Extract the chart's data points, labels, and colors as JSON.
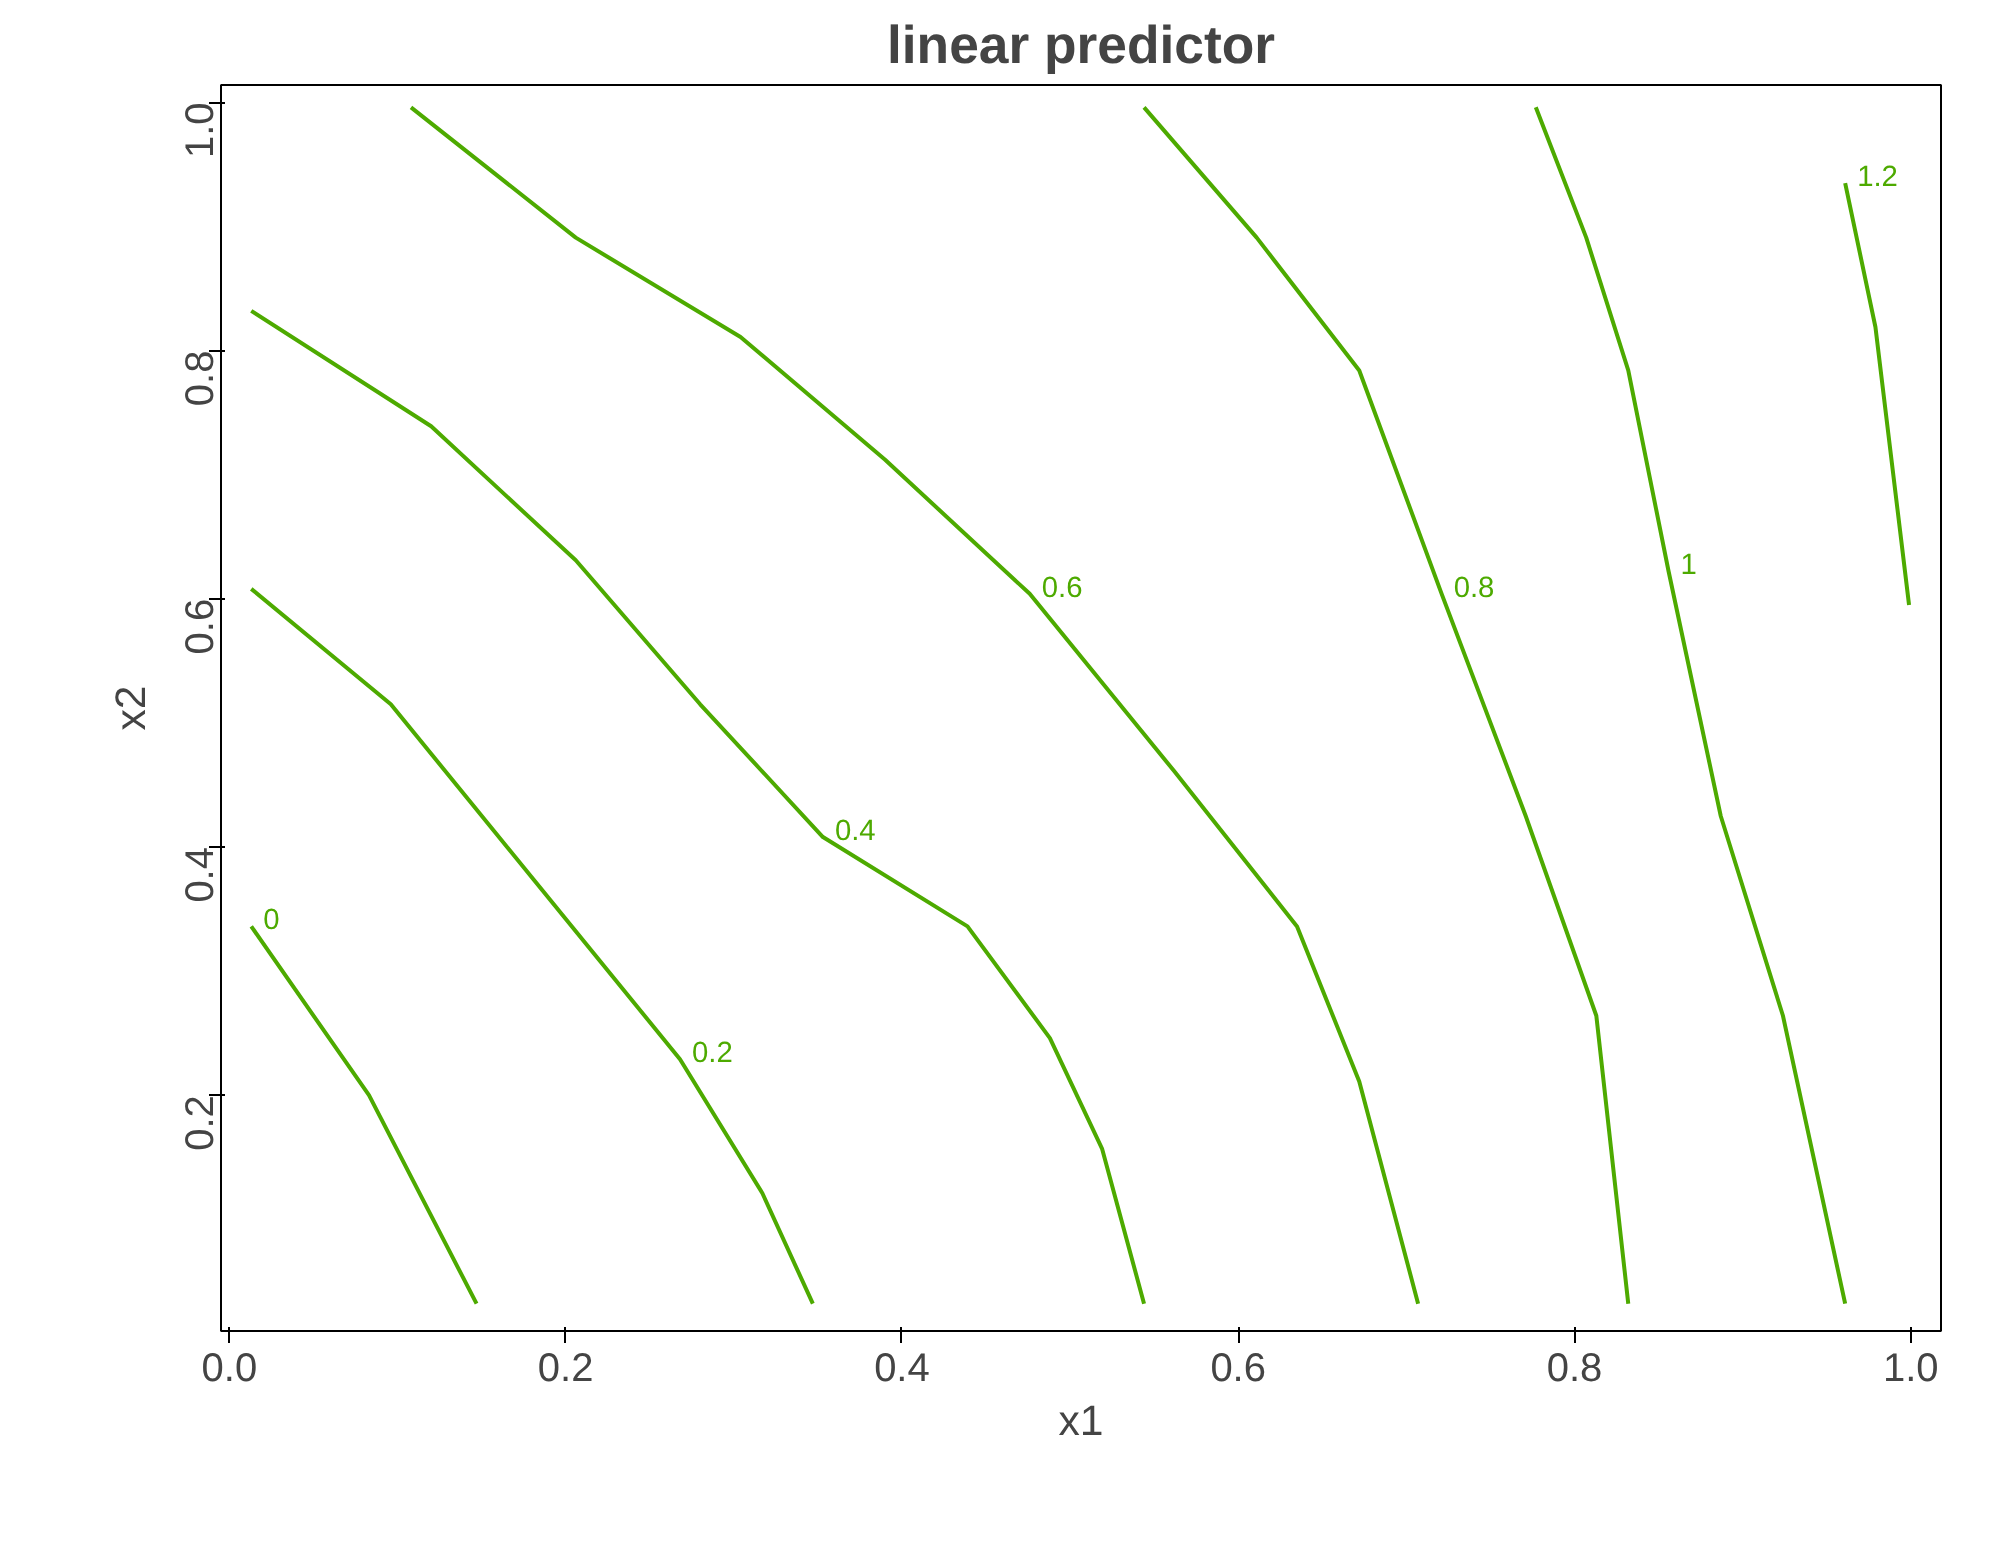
{
  "chart_data": {
    "type": "line",
    "title": "linear predictor",
    "xlabel": "x1",
    "ylabel": "x2",
    "xlim": [
      -0.005,
      1.018
    ],
    "ylim": [
      0.01,
      1.014
    ],
    "xticks": [
      {
        "value": 0,
        "label": "0.0"
      },
      0.2,
      0.4,
      0.6,
      0.8,
      {
        "value": 1,
        "label": "1.0"
      }
    ],
    "yticks": [
      0.2,
      0.4,
      0.6,
      0.8,
      {
        "value": 1,
        "label": "1.0"
      }
    ],
    "grid": false,
    "legend": false,
    "marker": "none",
    "line_style": "solid",
    "series": [
      {
        "name": "0",
        "color": "#4daa00",
        "x": [
          0.013,
          0.083,
          0.147
        ],
        "values": [
          0.336,
          0.2,
          0.032
        ]
      },
      {
        "name": "0.2",
        "color": "#4daa00",
        "x": [
          0.013,
          0.096,
          0.182,
          0.268,
          0.317,
          0.347
        ],
        "values": [
          0.608,
          0.515,
          0.372,
          0.229,
          0.121,
          0.032
        ]
      },
      {
        "name": "0.4",
        "color": "#4daa00",
        "x": [
          0.013,
          0.12,
          0.206,
          0.28,
          0.353,
          0.439,
          0.488,
          0.519,
          0.544
        ],
        "values": [
          0.832,
          0.739,
          0.631,
          0.515,
          0.408,
          0.336,
          0.246,
          0.157,
          0.032
        ]
      },
      {
        "name": "0.6",
        "color": "#4daa00",
        "x": [
          0.108,
          0.206,
          0.304,
          0.39,
          0.476,
          0.562,
          0.635,
          0.672,
          0.707
        ],
        "values": [
          0.996,
          0.891,
          0.811,
          0.712,
          0.604,
          0.461,
          0.336,
          0.211,
          0.032
        ]
      },
      {
        "name": "0.8",
        "color": "#4daa00",
        "x": [
          0.544,
          0.611,
          0.672,
          0.721,
          0.771,
          0.813,
          0.832
        ],
        "values": [
          0.996,
          0.891,
          0.784,
          0.604,
          0.425,
          0.264,
          0.032
        ]
      },
      {
        "name": "1",
        "color": "#4daa00",
        "x": [
          0.777,
          0.807,
          0.832,
          0.856,
          0.887,
          0.924,
          0.961
        ],
        "values": [
          0.996,
          0.891,
          0.784,
          0.622,
          0.425,
          0.264,
          0.032
        ]
      },
      {
        "name": "1.2",
        "color": "#4daa00",
        "x": [
          0.961,
          0.979,
          0.999
        ],
        "values": [
          0.935,
          0.819,
          0.595
        ]
      }
    ]
  }
}
